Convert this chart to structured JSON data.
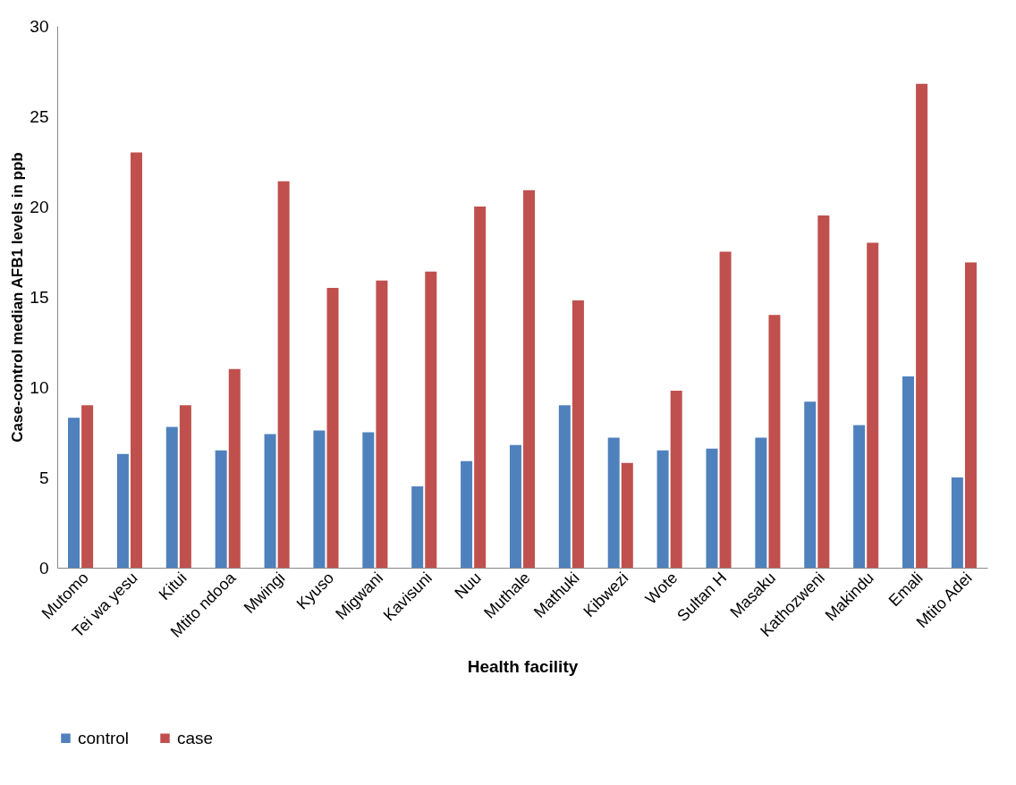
{
  "chart_data": {
    "type": "bar",
    "xlabel": "Health facility",
    "ylabel": "Case-control median AFB1 levels in ppb",
    "categories": [
      "Mutomo",
      "Tei wa yesu",
      "Kitui",
      "Mtito ndooa",
      "Mwingi",
      "Kyuso",
      "Migwani",
      "Kavisuni",
      "Nuu",
      "Muthale",
      "Mathuki",
      "Kibwezi",
      "Wote",
      "Sultan H",
      "Masaku",
      "Kathozweni",
      "Makindu",
      "Emali",
      "Mtito Adei"
    ],
    "series": [
      {
        "name": "control",
        "color": "#4f81bd",
        "values": [
          8.3,
          6.3,
          7.8,
          6.5,
          7.4,
          7.6,
          7.5,
          4.5,
          5.9,
          6.8,
          9.0,
          7.2,
          6.5,
          6.6,
          7.2,
          9.2,
          7.9,
          10.6,
          5.0
        ]
      },
      {
        "name": "case",
        "color": "#c0504d",
        "values": [
          9.0,
          23.0,
          9.0,
          11.0,
          21.4,
          15.5,
          15.9,
          16.4,
          20.0,
          20.9,
          14.8,
          5.8,
          9.8,
          17.5,
          14.0,
          19.5,
          18.0,
          26.8,
          16.9
        ]
      }
    ],
    "ylim": [
      0,
      30
    ],
    "yticks": [
      0,
      5,
      10,
      15,
      20,
      25,
      30
    ],
    "grid": false,
    "legend": "bottom"
  }
}
